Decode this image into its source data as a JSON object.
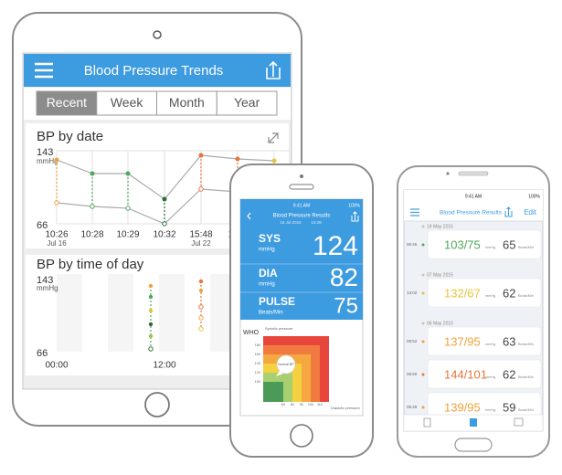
{
  "tablet": {
    "header": {
      "title": "Blood Pressure Trends"
    },
    "tabs": [
      "Recent",
      "Week",
      "Month",
      "Year"
    ],
    "by_date": {
      "title": "BP by date",
      "y_top": "143",
      "y_unit": "mmHg",
      "y_bottom": "66",
      "x_labels": [
        "10:26",
        "10:28",
        "10:29",
        "10:32",
        "15:48",
        "15"
      ],
      "x_sublabels": [
        "Jul 16",
        "Jul 22"
      ]
    },
    "by_time": {
      "title": "BP by time of day",
      "y_top": "143",
      "y_unit": "mmHg",
      "y_bottom": "66",
      "x_labels": [
        "00:00",
        "12:00"
      ]
    }
  },
  "iphone": {
    "status": {
      "time": "9:41 AM",
      "battery": "100%"
    },
    "header": {
      "title": "Blood Pressure Results",
      "date": "16 Jul 2015",
      "time": "10:28"
    },
    "readings": [
      {
        "label": "SYS",
        "unit": "mmHg",
        "value": "124"
      },
      {
        "label": "DIA",
        "unit": "mmHg",
        "value": "82"
      },
      {
        "label": "PULSE",
        "unit": "Beats/Min",
        "value": "75"
      }
    ],
    "who": {
      "title": "WHO",
      "y_axis": "Systolic pressure",
      "x_axis": "Diastolic pressure",
      "zone": "Normal BP",
      "y_ticks": [
        "180",
        "160",
        "140",
        "120",
        "100"
      ],
      "x_ticks": [
        "60",
        "80",
        "90",
        "100",
        "110"
      ]
    }
  },
  "android": {
    "status": {
      "time": "9:41 AM",
      "battery": "100%"
    },
    "header": {
      "title": "Blood Pressure Results",
      "edit": "Edit"
    },
    "groups": [
      {
        "date": "19 May 2015",
        "items": [
          {
            "time": "08:46",
            "bp": "103/75",
            "bp_unit": "mmHg",
            "pulse": "65",
            "pulse_unit": "Beats/Min",
            "color": "#4fa85a"
          }
        ]
      },
      {
        "date": "07 May 2015",
        "items": [
          {
            "time": "13:02",
            "bp": "132/67",
            "bp_unit": "mmHg",
            "pulse": "62",
            "pulse_unit": "Beats/Min",
            "color": "#e5c43c"
          }
        ]
      },
      {
        "date": "06 May 2015",
        "items": [
          {
            "time": "08:52",
            "bp": "137/95",
            "bp_unit": "mmHg",
            "pulse": "63",
            "pulse_unit": "Beats/Min",
            "color": "#f0a23a"
          },
          {
            "time": "08:50",
            "bp": "144/101",
            "bp_unit": "mmHg",
            "pulse": "62",
            "pulse_unit": "Beats/Min",
            "color": "#e8753a"
          },
          {
            "time": "08:49",
            "bp": "139/95",
            "bp_unit": "mmHg",
            "pulse": "59",
            "pulse_unit": "Beats/Min",
            "color": "#f0a23a"
          }
        ]
      }
    ]
  }
}
